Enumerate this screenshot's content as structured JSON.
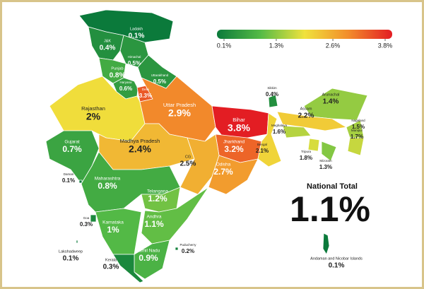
{
  "legend": {
    "colors": [
      "#0b7a3b",
      "#55bb46",
      "#f0e23c",
      "#f28c2b",
      "#e31d23"
    ],
    "ticks": [
      {
        "value": 0.1,
        "label": "0.1%"
      },
      {
        "value": 1.3,
        "label": "1.3%"
      },
      {
        "value": 2.6,
        "label": "2.6%"
      },
      {
        "value": 3.8,
        "label": "3.8%"
      }
    ]
  },
  "regions": [
    {
      "name": "Ladakh",
      "value": 0.1,
      "label": "0.1%"
    },
    {
      "name": "J&K",
      "value": 0.4,
      "label": "0.4%"
    },
    {
      "name": "Himachal",
      "value": 0.5,
      "label": "0.5%"
    },
    {
      "name": "Punjab",
      "value": 0.8,
      "label": "0.8%"
    },
    {
      "name": "Haryana",
      "value": 0.6,
      "label": "0.6%"
    },
    {
      "name": "Uttarakhand",
      "value": 0.5,
      "label": "0.5%"
    },
    {
      "name": "Delhi",
      "value": 3.3,
      "label": "3.3%"
    },
    {
      "name": "Rajasthan",
      "value": 2,
      "label": "2%"
    },
    {
      "name": "Uttar Pradesh",
      "value": 2.9,
      "label": "2.9%"
    },
    {
      "name": "Bihar",
      "value": 3.8,
      "label": "3.8%"
    },
    {
      "name": "Sikkim",
      "value": 0.4,
      "label": "0.4%"
    },
    {
      "name": "Arunachal",
      "value": 1.4,
      "label": "1.4%"
    },
    {
      "name": "Assam",
      "value": 2.2,
      "label": "2.2%"
    },
    {
      "name": "Nagaland",
      "value": 1.5,
      "label": "1.5%"
    },
    {
      "name": "Meghalaya",
      "value": 1.6,
      "label": "1.6%"
    },
    {
      "name": "Manipur",
      "value": 1.7,
      "label": "1.7%"
    },
    {
      "name": "Tripura",
      "value": 1.8,
      "label": "1.8%"
    },
    {
      "name": "Mizoram",
      "value": 1.3,
      "label": "1.3%"
    },
    {
      "name": "Jharkhand",
      "value": 3.2,
      "label": "3.2%"
    },
    {
      "name": "Bengal",
      "value": 2.1,
      "label": "2.1%"
    },
    {
      "name": "Gujarat",
      "value": 0.7,
      "label": "0.7%"
    },
    {
      "name": "Madhya Pradesh",
      "value": 2.4,
      "label": "2.4%"
    },
    {
      "name": "CG",
      "value": 2.5,
      "label": "2.5%"
    },
    {
      "name": "Odisha",
      "value": 2.7,
      "label": "2.7%"
    },
    {
      "name": "Daman",
      "value": 0.1,
      "label": "0.1%"
    },
    {
      "name": "Maharashtra",
      "value": 0.8,
      "label": "0.8%"
    },
    {
      "name": "Telangana",
      "value": 1.2,
      "label": "1.2%"
    },
    {
      "name": "Goa",
      "value": 0.3,
      "label": "0.3%"
    },
    {
      "name": "Karnataka",
      "value": 1,
      "label": "1%"
    },
    {
      "name": "Andhra",
      "value": 1.1,
      "label": "1.1%"
    },
    {
      "name": "Tamil Nadu",
      "value": 0.9,
      "label": "0.9%"
    },
    {
      "name": "Puducherry",
      "value": 0.2,
      "label": "0.2%"
    },
    {
      "name": "Lakshadweep",
      "value": 0.1,
      "label": "0.1%"
    },
    {
      "name": "Kerala",
      "value": 0.3,
      "label": "0.3%"
    },
    {
      "name": "Andaman and Nicobar Islands",
      "value": 0.1,
      "label": "0.1%"
    }
  ],
  "national": {
    "title": "National Total",
    "value": 1.1,
    "label": "1.1%"
  }
}
